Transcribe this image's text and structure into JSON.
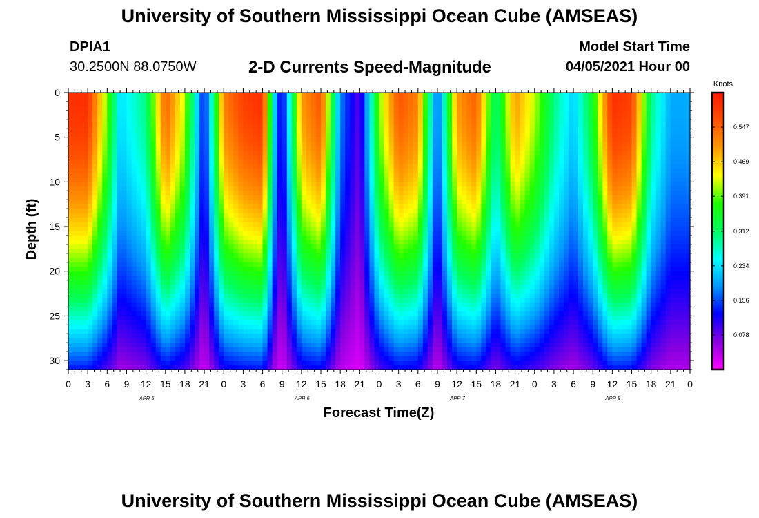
{
  "page": {
    "title_top": "University of Southern Mississippi Ocean Cube (AMSEAS)",
    "title_bottom": "University of Southern Mississippi Ocean Cube (AMSEAS)",
    "station": "DPIA1",
    "coords": "30.2500N  88.0750W",
    "model_start_label": "Model Start Time",
    "model_start_value": "04/05/2021 Hour 00",
    "chart_title": "2-D Currents Speed-Magnitude"
  },
  "chart_data": {
    "type": "heatmap",
    "title": "2-D Currents Speed-Magnitude",
    "xlabel": "Forecast Time(Z)",
    "ylabel": "Depth (ft)",
    "x_range_hours": [
      0,
      96
    ],
    "y_range_ft": [
      0,
      31
    ],
    "x_tick_labels": [
      "0",
      "3",
      "6",
      "9",
      "12",
      "15",
      "18",
      "21",
      "0",
      "3",
      "6",
      "9",
      "12",
      "15",
      "18",
      "21",
      "0",
      "3",
      "6",
      "9",
      "12",
      "15",
      "18",
      "21",
      "0",
      "3",
      "6",
      "9",
      "12",
      "15",
      "18",
      "21",
      "0"
    ],
    "y_tick_labels": [
      "0",
      "5",
      "10",
      "15",
      "20",
      "25",
      "30"
    ],
    "y_tick_values": [
      0,
      5,
      10,
      15,
      20,
      25,
      30
    ],
    "date_labels": [
      {
        "label": "APR 5",
        "hour": 12
      },
      {
        "label": "APR 6",
        "hour": 36
      },
      {
        "label": "APR 7",
        "hour": 60
      },
      {
        "label": "APR 8",
        "hour": 84
      }
    ],
    "colorbar": {
      "units": "Knots",
      "ticks": [
        "0.547",
        "0.469",
        "0.391",
        "0.312",
        "0.234",
        "0.156",
        "0.078"
      ],
      "tick_values": [
        0.547,
        0.469,
        0.391,
        0.312,
        0.234,
        0.156,
        0.078
      ],
      "min": 0.0,
      "max": 0.625,
      "colors": [
        "#ff00ff",
        "#8a00e0",
        "#0000ff",
        "#0096ff",
        "#00ffff",
        "#00ff60",
        "#20ff00",
        "#ffff00",
        "#ff9900",
        "#ff5000",
        "#ff1800"
      ]
    },
    "surface_speed_profile_knots": [
      {
        "hour": 0,
        "value": 0.6
      },
      {
        "hour": 3,
        "value": 0.6
      },
      {
        "hour": 6,
        "value": 0.4
      },
      {
        "hour": 8,
        "value": 0.23
      },
      {
        "hour": 12,
        "value": 0.3
      },
      {
        "hour": 15,
        "value": 0.55
      },
      {
        "hour": 18,
        "value": 0.42
      },
      {
        "hour": 21,
        "value": 0.12
      },
      {
        "hour": 24,
        "value": 0.52
      },
      {
        "hour": 27,
        "value": 0.58
      },
      {
        "hour": 30,
        "value": 0.6
      },
      {
        "hour": 32,
        "value": 0.2
      },
      {
        "hour": 33,
        "value": 0.1
      },
      {
        "hour": 36,
        "value": 0.5
      },
      {
        "hour": 39,
        "value": 0.56
      },
      {
        "hour": 42,
        "value": 0.18
      },
      {
        "hour": 45,
        "value": 0.08
      },
      {
        "hour": 48,
        "value": 0.4
      },
      {
        "hour": 51,
        "value": 0.56
      },
      {
        "hour": 54,
        "value": 0.52
      },
      {
        "hour": 57,
        "value": 0.15
      },
      {
        "hour": 60,
        "value": 0.5
      },
      {
        "hour": 63,
        "value": 0.55
      },
      {
        "hour": 66,
        "value": 0.3
      },
      {
        "hour": 69,
        "value": 0.5
      },
      {
        "hour": 72,
        "value": 0.42
      },
      {
        "hour": 75,
        "value": 0.3
      },
      {
        "hour": 78,
        "value": 0.22
      },
      {
        "hour": 81,
        "value": 0.35
      },
      {
        "hour": 84,
        "value": 0.6
      },
      {
        "hour": 87,
        "value": 0.58
      },
      {
        "hour": 90,
        "value": 0.3
      },
      {
        "hour": 93,
        "value": 0.2
      },
      {
        "hour": 96,
        "value": 0.2
      }
    ]
  }
}
